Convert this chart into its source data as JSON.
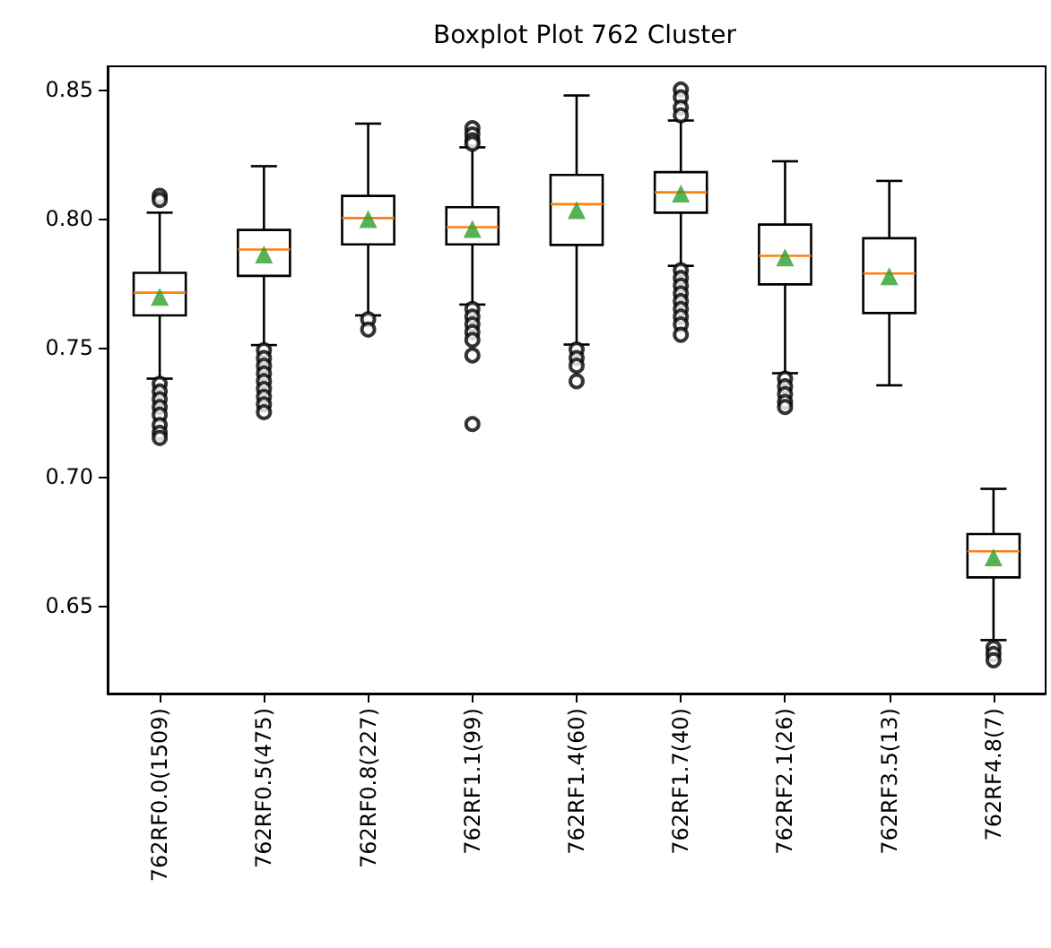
{
  "chart_data": {
    "type": "box",
    "title": "Boxplot Plot 762 Cluster",
    "categories": [
      "762RF0.0(1509)",
      "762RF0.5(475)",
      "762RF0.8(227)",
      "762RF1.1(99)",
      "762RF1.4(60)",
      "762RF1.7(40)",
      "762RF2.1(26)",
      "762RF3.5(13)",
      "762RF4.8(7)"
    ],
    "color": "#000000",
    "boxes": [
      {
        "low": 0.738,
        "q1": 0.7625,
        "median": 0.7713,
        "q3": 0.779,
        "high": 0.8023,
        "mean": 0.7697,
        "outliers": [
          0.8088,
          0.8072,
          0.736,
          0.733,
          0.73,
          0.727,
          0.724,
          0.72,
          0.717,
          0.715
        ]
      },
      {
        "low": 0.751,
        "q1": 0.7778,
        "median": 0.788,
        "q3": 0.7956,
        "high": 0.8203,
        "mean": 0.7861,
        "outliers": [
          0.749,
          0.746,
          0.743,
          0.74,
          0.737,
          0.734,
          0.731,
          0.728,
          0.725
        ]
      },
      {
        "low": 0.7625,
        "q1": 0.79,
        "median": 0.8002,
        "q3": 0.8088,
        "high": 0.8368,
        "mean": 0.7998,
        "outliers": [
          0.761,
          0.757
        ]
      },
      {
        "low": 0.7667,
        "q1": 0.79,
        "median": 0.7967,
        "q3": 0.8044,
        "high": 0.8276,
        "mean": 0.796,
        "outliers": [
          0.835,
          0.8326,
          0.8303,
          0.829,
          0.765,
          0.762,
          0.759,
          0.756,
          0.753,
          0.747,
          0.7204
        ]
      },
      {
        "low": 0.7512,
        "q1": 0.7898,
        "median": 0.8056,
        "q3": 0.8169,
        "high": 0.8477,
        "mean": 0.8033,
        "outliers": [
          0.7493,
          0.746,
          0.743,
          0.737
        ]
      },
      {
        "low": 0.7817,
        "q1": 0.8023,
        "median": 0.8102,
        "q3": 0.818,
        "high": 0.838,
        "mean": 0.8097,
        "outliers": [
          0.85,
          0.847,
          0.843,
          0.84,
          0.78,
          0.777,
          0.774,
          0.771,
          0.768,
          0.765,
          0.762,
          0.759,
          0.755
        ]
      },
      {
        "low": 0.7401,
        "q1": 0.7745,
        "median": 0.7856,
        "q3": 0.7977,
        "high": 0.8222,
        "mean": 0.785,
        "outliers": [
          0.738,
          0.735,
          0.732,
          0.729,
          0.727
        ]
      },
      {
        "low": 0.7354,
        "q1": 0.7634,
        "median": 0.7787,
        "q3": 0.7924,
        "high": 0.8146,
        "mean": 0.7777
      },
      {
        "low": 0.6367,
        "q1": 0.661,
        "median": 0.6711,
        "q3": 0.6778,
        "high": 0.6953,
        "mean": 0.6688,
        "outliers": [
          0.6337,
          0.6313,
          0.6289
        ]
      }
    ],
    "ylim": [
      0.616,
      0.859
    ],
    "yticks": [
      {
        "value": 0.65,
        "label": "0.65"
      },
      {
        "value": 0.7,
        "label": "0.70"
      },
      {
        "value": 0.75,
        "label": "0.75"
      },
      {
        "value": 0.8,
        "label": "0.80"
      },
      {
        "value": 0.85,
        "label": "0.85"
      }
    ],
    "grid": false
  }
}
